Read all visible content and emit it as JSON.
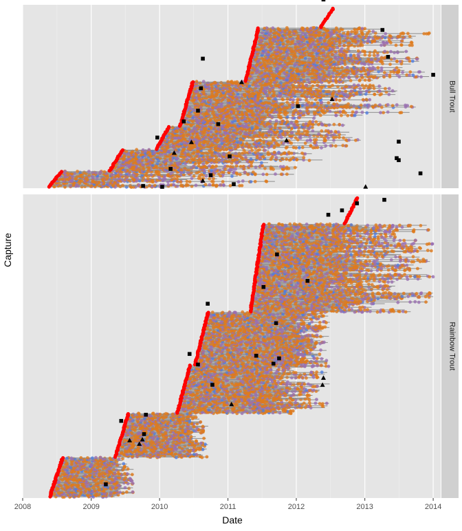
{
  "chart_data": {
    "type": "scatter",
    "xlabel": "Date",
    "ylabel": "Capture",
    "x_ticks": [
      "2008",
      "2009",
      "2010",
      "2011",
      "2012",
      "2013",
      "2014"
    ],
    "xlim": [
      "2008-01-01",
      "2014-02-10"
    ],
    "grid": true,
    "facets": [
      {
        "name": "Bull Trout",
        "n_fish": 200,
        "fish_groups": [
          {
            "release": "2008-05-20",
            "n": 18,
            "end_min": "2009-04-01",
            "end_max": "2012-03-20"
          },
          {
            "release": "2009-04-10",
            "n": 24,
            "end_min": "2010-03-20",
            "end_max": "2012-06-01"
          },
          {
            "release": "2009-12-15",
            "n": 26,
            "end_min": "2011-01-10",
            "end_max": "2013-04-01"
          },
          {
            "release": "2010-04-20",
            "n": 50,
            "end_min": "2011-06-20",
            "end_max": "2013-10-01"
          },
          {
            "release": "2011-04-05",
            "n": 60,
            "end_min": "2012-06-01",
            "end_max": "2013-12-31"
          },
          {
            "release": "2012-05-10",
            "n": 22,
            "end_min": "",
            "end_max": ""
          }
        ],
        "recaptures": [
          {
            "date": "2009-10-05",
            "capture": 1,
            "shape": "square"
          },
          {
            "date": "2010-01-15",
            "capture": 0,
            "shape": "square"
          },
          {
            "date": "2010-03-01",
            "capture": 20,
            "shape": "square"
          },
          {
            "date": "2009-12-20",
            "capture": 55,
            "shape": "square"
          },
          {
            "date": "2010-03-20",
            "capture": 38,
            "shape": "triangle"
          },
          {
            "date": "2010-06-20",
            "capture": 50,
            "shape": "triangle"
          },
          {
            "date": "2010-08-20",
            "capture": 7,
            "shape": "triangle"
          },
          {
            "date": "2010-10-01",
            "capture": 13,
            "shape": "square"
          },
          {
            "date": "2011-02-01",
            "capture": 3,
            "shape": "square"
          },
          {
            "date": "2011-01-10",
            "capture": 34,
            "shape": "square"
          },
          {
            "date": "2010-05-10",
            "capture": 73,
            "shape": "square"
          },
          {
            "date": "2010-11-10",
            "capture": 70,
            "shape": "square"
          },
          {
            "date": "2010-07-25",
            "capture": 85,
            "shape": "square"
          },
          {
            "date": "2010-08-10",
            "capture": 110,
            "shape": "square"
          },
          {
            "date": "2010-08-20",
            "capture": 143,
            "shape": "square"
          },
          {
            "date": "2011-03-15",
            "capture": 117,
            "shape": "triangle"
          },
          {
            "date": "2011-11-10",
            "capture": 52,
            "shape": "triangle"
          },
          {
            "date": "2012-01-10",
            "capture": 90,
            "shape": "square"
          },
          {
            "date": "2012-07-10",
            "capture": 98,
            "shape": "triangle"
          },
          {
            "date": "2012-05-25",
            "capture": 209,
            "shape": "square"
          },
          {
            "date": "2013-02-20",
            "capture": 228,
            "shape": "square"
          },
          {
            "date": "2013-04-05",
            "capture": 175,
            "shape": "square"
          },
          {
            "date": "2013-05-05",
            "capture": 145,
            "shape": "square"
          },
          {
            "date": "2013-04-20",
            "capture": 243,
            "shape": "square"
          },
          {
            "date": "2013-07-10",
            "capture": 215,
            "shape": "square"
          },
          {
            "date": "2013-11-15",
            "capture": 222,
            "shape": "triangle"
          },
          {
            "date": "2014-01-01",
            "capture": 125,
            "shape": "square"
          },
          {
            "date": "2013-06-20",
            "capture": 32,
            "shape": "square"
          }
        ]
      },
      {
        "name": "Rainbow Trout",
        "n_fish": 340,
        "fish_groups": [
          {
            "release": "2008-05-25",
            "n": 45,
            "end_min": "2009-05-01",
            "end_max": "2009-08-20"
          },
          {
            "release": "2009-05-10",
            "n": 50,
            "end_min": "2010-06-01",
            "end_max": "2010-09-20"
          },
          {
            "release": "2010-04-05",
            "n": 55,
            "end_min": "2011-08-01",
            "end_max": "2012-07-01"
          },
          {
            "release": "2010-07-10",
            "n": 60,
            "end_min": "2012-01-01",
            "end_max": "2012-07-01"
          },
          {
            "release": "2011-05-01",
            "n": 100,
            "end_min": "2012-06-01",
            "end_max": "2014-01-10"
          },
          {
            "release": "2012-09-15",
            "n": 30,
            "end_min": "",
            "end_max": ""
          }
        ],
        "recaptures": [
          {
            "date": "2009-03-20",
            "capture": 14,
            "shape": "square"
          },
          {
            "date": "2009-07-25",
            "capture": 64,
            "shape": "triangle"
          },
          {
            "date": "2009-09-15",
            "capture": 60,
            "shape": "triangle"
          },
          {
            "date": "2009-10-01",
            "capture": 65,
            "shape": "triangle"
          },
          {
            "date": "2009-10-10",
            "capture": 71,
            "shape": "square"
          },
          {
            "date": "2009-10-20",
            "capture": 93,
            "shape": "square"
          },
          {
            "date": "2009-06-10",
            "capture": 86,
            "shape": "square"
          },
          {
            "date": "2010-06-10",
            "capture": 162,
            "shape": "square"
          },
          {
            "date": "2010-07-25",
            "capture": 150,
            "shape": "square"
          },
          {
            "date": "2010-10-10",
            "capture": 127,
            "shape": "square"
          },
          {
            "date": "2011-01-20",
            "capture": 105,
            "shape": "triangle"
          },
          {
            "date": "2011-06-01",
            "capture": 160,
            "shape": "square"
          },
          {
            "date": "2011-10-01",
            "capture": 157,
            "shape": "square"
          },
          {
            "date": "2011-09-01",
            "capture": 151,
            "shape": "square"
          },
          {
            "date": "2011-07-10",
            "capture": 238,
            "shape": "square"
          },
          {
            "date": "2011-09-15",
            "capture": 197,
            "shape": "square"
          },
          {
            "date": "2012-03-01",
            "capture": 245,
            "shape": "square"
          },
          {
            "date": "2010-09-15",
            "capture": 219,
            "shape": "square"
          },
          {
            "date": "2012-05-20",
            "capture": 127,
            "shape": "triangle"
          },
          {
            "date": "2012-05-25",
            "capture": 135,
            "shape": "triangle"
          },
          {
            "date": "2011-09-20",
            "capture": 275,
            "shape": "square"
          },
          {
            "date": "2012-06-20",
            "capture": 320,
            "shape": "square"
          },
          {
            "date": "2012-09-01",
            "capture": 325,
            "shape": "square"
          },
          {
            "date": "2012-11-20",
            "capture": 333,
            "shape": "square"
          },
          {
            "date": "2013-01-05",
            "capture": 352,
            "shape": "triangle"
          },
          {
            "date": "2013-04-15",
            "capture": 337,
            "shape": "square"
          },
          {
            "date": "2013-07-01",
            "capture": 382,
            "shape": "square"
          },
          {
            "date": "2013-07-01",
            "capture": 403,
            "shape": "square"
          },
          {
            "date": "2013-10-25",
            "capture": 367,
            "shape": "square"
          }
        ]
      }
    ],
    "colors": {
      "release": "#ff0000",
      "line": "#8c8c8c",
      "orange": "#e07b1b",
      "purple": "#9a6fb2",
      "blue": "#4f7de0",
      "recapture": "#000000",
      "panel_bg": "#e5e5e5",
      "strip_bg": "#d0d0d0",
      "grid": "#ffffff"
    }
  }
}
